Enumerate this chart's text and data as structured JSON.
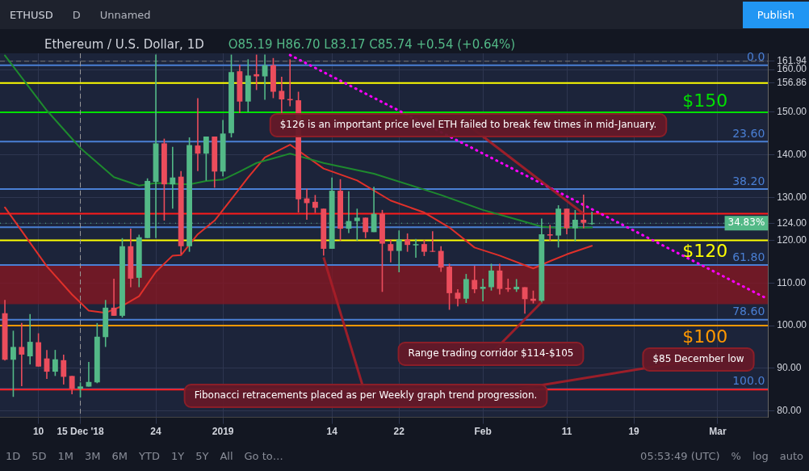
{
  "chart_data": {
    "type": "candlestick",
    "title": "Ethereum / U.S. Dollar, 1D",
    "subtitle": "O85.19 H86.70 L83.17 C85.74 +0.54 (+0.64%)",
    "x": [
      "2018-12-06",
      "2018-12-07",
      "2018-12-08",
      "2018-12-09",
      "2018-12-10",
      "2018-12-11",
      "2018-12-12",
      "2018-12-13",
      "2018-12-14",
      "2018-12-15",
      "2018-12-16",
      "2018-12-17",
      "2018-12-18",
      "2018-12-19",
      "2018-12-20",
      "2018-12-21",
      "2018-12-22",
      "2018-12-23",
      "2018-12-24",
      "2018-12-25",
      "2018-12-26",
      "2018-12-27",
      "2018-12-28",
      "2018-12-29",
      "2018-12-30",
      "2018-12-31",
      "2019-01-01",
      "2019-01-02",
      "2019-01-03",
      "2019-01-04",
      "2019-01-05",
      "2019-01-06",
      "2019-01-07",
      "2019-01-08",
      "2019-01-09",
      "2019-01-10",
      "2019-01-11",
      "2019-01-12",
      "2019-01-13",
      "2019-01-14",
      "2019-01-15",
      "2019-01-16",
      "2019-01-17",
      "2019-01-18",
      "2019-01-19",
      "2019-01-20",
      "2019-01-21",
      "2019-01-22",
      "2019-01-23",
      "2019-01-24",
      "2019-01-25",
      "2019-01-26",
      "2019-01-27",
      "2019-01-28",
      "2019-01-29",
      "2019-01-30",
      "2019-01-31",
      "2019-02-01",
      "2019-02-02",
      "2019-02-03",
      "2019-02-04",
      "2019-02-05",
      "2019-02-06",
      "2019-02-07",
      "2019-02-08",
      "2019-02-09",
      "2019-02-10",
      "2019-02-11",
      "2019-02-12",
      "2019-02-13",
      "2019-02-14"
    ],
    "ohlc": [
      [
        102.9,
        106.0,
        91.8,
        92.0
      ],
      [
        92.0,
        98.8,
        83.3,
        95.0
      ],
      [
        95.0,
        100.6,
        85.8,
        93.2
      ],
      [
        92.8,
        102.7,
        90.9,
        96.2
      ],
      [
        96.1,
        98.2,
        90.4,
        90.4
      ],
      [
        92.3,
        94.3,
        87.5,
        89.2
      ],
      [
        89.2,
        94.3,
        88.2,
        92.1
      ],
      [
        91.9,
        93.2,
        86.2,
        88.0
      ],
      [
        88.2,
        88.2,
        83.9,
        85.2
      ],
      [
        85.19,
        86.7,
        83.17,
        85.74
      ],
      [
        85.7,
        91.5,
        85.7,
        86.8
      ],
      [
        86.7,
        100.6,
        86.5,
        97.4
      ],
      [
        97.3,
        106.0,
        95.0,
        104.2
      ],
      [
        104.2,
        111.0,
        102.3,
        102.3
      ],
      [
        102.3,
        120.5,
        101.9,
        118.6
      ],
      [
        118.6,
        122.7,
        109.0,
        111.0
      ],
      [
        111.2,
        121.3,
        109.0,
        120.7
      ],
      [
        120.5,
        134.5,
        120.5,
        133.9
      ],
      [
        133.7,
        163.5,
        120.5,
        142.7
      ],
      [
        142.7,
        143.8,
        124.6,
        133.1
      ],
      [
        133.1,
        141.9,
        127.4,
        134.7
      ],
      [
        134.9,
        136.2,
        116.7,
        118.6
      ],
      [
        118.6,
        144.1,
        117.3,
        142.3
      ],
      [
        142.2,
        153.3,
        136.2,
        140.3
      ],
      [
        140.3,
        144.3,
        134.0,
        144.3
      ],
      [
        144.3,
        144.3,
        132.3,
        136.1
      ],
      [
        136.1,
        148.2,
        135.0,
        145.0
      ],
      [
        145.1,
        163.5,
        144.1,
        159.4
      ],
      [
        159.6,
        161.1,
        149.8,
        152.5
      ],
      [
        152.5,
        162.4,
        150.0,
        158.6
      ],
      [
        158.9,
        163.5,
        155.2,
        158.4
      ],
      [
        158.4,
        163.5,
        152.9,
        161.0
      ],
      [
        161.0,
        162.7,
        153.3,
        154.8
      ],
      [
        155.0,
        158.3,
        149.8,
        153.0
      ],
      [
        153.1,
        162.4,
        151.4,
        152.8
      ],
      [
        152.8,
        154.8,
        126.5,
        129.6
      ],
      [
        129.8,
        132.1,
        124.8,
        128.7
      ],
      [
        129.0,
        130.6,
        126.4,
        127.6
      ],
      [
        127.4,
        127.4,
        116.4,
        118.0
      ],
      [
        118.0,
        134.7,
        118.0,
        131.6
      ],
      [
        131.6,
        134.3,
        119.9,
        122.7
      ],
      [
        122.7,
        131.5,
        121.7,
        124.5
      ],
      [
        124.5,
        127.4,
        119.9,
        125.3
      ],
      [
        125.3,
        125.3,
        120.5,
        121.9
      ],
      [
        121.9,
        132.5,
        121.9,
        126.2
      ],
      [
        126.2,
        127.1,
        107.9,
        119.2
      ],
      [
        119.1,
        120.2,
        114.8,
        117.5
      ],
      [
        117.5,
        122.3,
        112.5,
        120.2
      ],
      [
        120.2,
        121.6,
        117.3,
        118.9
      ],
      [
        118.8,
        120.3,
        115.9,
        119.1
      ],
      [
        119.1,
        120.1,
        116.3,
        117.3
      ],
      [
        117.5,
        122.1,
        117.3,
        117.3
      ],
      [
        117.5,
        118.6,
        112.6,
        113.6
      ],
      [
        113.8,
        114.5,
        103.7,
        107.6
      ],
      [
        107.7,
        108.5,
        104.5,
        106.3
      ],
      [
        106.3,
        112.1,
        105.3,
        110.9
      ],
      [
        110.7,
        114.0,
        107.6,
        108.5
      ],
      [
        108.6,
        111.0,
        105.7,
        109.1
      ],
      [
        109.0,
        114.5,
        108.2,
        112.9
      ],
      [
        112.9,
        114.5,
        107.3,
        108.6
      ],
      [
        108.8,
        111.0,
        107.9,
        108.5
      ],
      [
        108.5,
        110.9,
        107.9,
        109.1
      ],
      [
        109.0,
        109.0,
        102.8,
        106.2
      ],
      [
        106.3,
        108.2,
        105.2,
        105.8
      ],
      [
        105.8,
        125.1,
        105.2,
        121.4
      ],
      [
        121.4,
        123.6,
        119.9,
        121.1
      ],
      [
        121.1,
        128.2,
        118.3,
        127.4
      ],
      [
        127.4,
        127.4,
        121.4,
        122.8
      ],
      [
        122.8,
        127.1,
        119.7,
        124.8
      ],
      [
        124.8,
        130.7,
        122.8,
        124.1
      ],
      [
        123.9,
        126.7,
        123.6,
        124.0
      ]
    ],
    "series": [
      {
        "type": "line",
        "color": "#1e8a2e",
        "x": [
          "2018-12-06",
          "2018-12-11",
          "2018-12-15",
          "2018-12-19",
          "2018-12-22",
          "2018-12-24",
          "2018-12-28",
          "2018-12-30",
          "2019-01-01",
          "2019-01-03",
          "2019-01-05",
          "2019-01-07",
          "2019-01-09",
          "2019-01-13",
          "2019-01-19",
          "2019-01-24",
          "2019-01-27",
          "2019-02-01",
          "2019-02-05",
          "2019-02-08",
          "2019-02-10",
          "2019-02-14"
        ],
        "values": [
          163.3,
          150.4,
          141.6,
          134.8,
          132.8,
          133.4,
          133.1,
          133.9,
          134.2,
          136.1,
          138.1,
          139.2,
          140.3,
          138.1,
          135.6,
          132.5,
          130.6,
          127.1,
          124.9,
          123.2,
          122.9,
          123.0
        ]
      },
      {
        "type": "line",
        "color": "#e0302a",
        "x": [
          "2018-12-06",
          "2018-12-11",
          "2018-12-14",
          "2018-12-16",
          "2018-12-18",
          "2018-12-20",
          "2018-12-22",
          "2018-12-24",
          "2018-12-26",
          "2018-12-27",
          "2018-12-29",
          "2018-12-31",
          "2019-01-02",
          "2019-01-04",
          "2019-01-06",
          "2019-01-09",
          "2019-01-13",
          "2019-01-17",
          "2019-01-21",
          "2019-01-25",
          "2019-01-28",
          "2019-01-31",
          "2019-02-03",
          "2019-02-07",
          "2019-02-09",
          "2019-02-11",
          "2019-02-14"
        ],
        "values": [
          127.7,
          113.9,
          107.3,
          103.5,
          103.0,
          104.6,
          106.9,
          112.6,
          116.4,
          116.5,
          121.4,
          124.6,
          129.6,
          134.7,
          139.4,
          142.4,
          136.8,
          134.0,
          129.3,
          126.5,
          123.0,
          118.3,
          116.4,
          113.4,
          115.1,
          116.7,
          118.7
        ]
      },
      {
        "type": "line",
        "color": "#ff00ff",
        "line_style": "dotted",
        "x": [
          "2019-01-09",
          "2019-03-07"
        ],
        "values": [
          163.4,
          106.2
        ]
      }
    ],
    "xlim": [
      "2018-12-05T10:00",
      "2019-03-07"
    ],
    "xticks": [
      {
        "value": "2018-12-10",
        "label": "10"
      },
      {
        "value": "2018-12-15",
        "label": "15 Dec '18"
      },
      {
        "value": "2018-12-24",
        "label": "24"
      },
      {
        "value": "2019-01-01",
        "label": "2019"
      },
      {
        "value": "2019-01-14",
        "label": "14"
      },
      {
        "value": "2019-01-22",
        "label": "22"
      },
      {
        "value": "2019-02-01",
        "label": "Feb"
      },
      {
        "value": "2019-02-11",
        "label": "11"
      },
      {
        "value": "2019-02-19",
        "label": "19"
      },
      {
        "value": "2019-03-01",
        "label": "Mar"
      }
    ],
    "ylim": [
      78.5,
      163.8
    ],
    "yticks": [
      {
        "value": 80,
        "label": "80.00"
      },
      {
        "value": 90,
        "label": "90.00"
      },
      {
        "value": 100,
        "label": "100.00"
      },
      {
        "value": 110,
        "label": "110.00"
      },
      {
        "value": 120,
        "label": "120.00"
      },
      {
        "value": 124,
        "label": "124.00"
      },
      {
        "value": 130,
        "label": "130.00"
      },
      {
        "value": 140,
        "label": "140.00"
      },
      {
        "value": 150,
        "label": "150.00"
      },
      {
        "value": 156.86,
        "label": "156.86"
      },
      {
        "value": 160,
        "label": "160.00"
      },
      {
        "value": 161.94,
        "label": "161.94"
      }
    ],
    "grid": true,
    "legend": false,
    "bands": [
      {
        "axis": "y",
        "from": 105,
        "to": 114,
        "color": "#8b1520"
      }
    ],
    "ref_lines": [
      {
        "axis": "y",
        "value": 161.0,
        "label": null,
        "color": "#4a7fd4"
      },
      {
        "axis": "y",
        "value": 143.1,
        "label": null,
        "color": "#4a7fd4"
      },
      {
        "axis": "y",
        "value": 132.0,
        "label": null,
        "color": "#4a7fd4"
      },
      {
        "axis": "y",
        "value": 123.05,
        "label": null,
        "color": "#4a7fd4"
      },
      {
        "axis": "y",
        "value": 114.2,
        "label": null,
        "color": "#4a7fd4"
      },
      {
        "axis": "y",
        "value": 101.4,
        "label": null,
        "color": "#4a7fd4"
      },
      {
        "axis": "y",
        "value": 85.1,
        "label": null,
        "color": "#4a7fd4"
      },
      {
        "axis": "y",
        "value": 156.86,
        "label": null,
        "color": "#ffff00"
      },
      {
        "axis": "y",
        "value": 150,
        "label": "$150",
        "color": "#00e000"
      },
      {
        "axis": "y",
        "value": 126.2,
        "label": null,
        "color": "#ff1a1a"
      },
      {
        "axis": "y",
        "value": 120,
        "label": "$120",
        "color": "#ffff00"
      },
      {
        "axis": "y",
        "value": 100,
        "label": "$100",
        "color": "#ff9800"
      },
      {
        "axis": "y",
        "value": 85,
        "label": null,
        "color": "#ff1a1a"
      },
      {
        "axis": "y",
        "value": 161.94,
        "label": null,
        "color": "#777777",
        "line_style": "dashed"
      },
      {
        "axis": "y",
        "value": 124,
        "label": null,
        "color": "#53b987",
        "line_style": "dotted"
      },
      {
        "axis": "x",
        "value": "2018-12-15",
        "label": null,
        "color": "#999999",
        "line_style": "dashed"
      }
    ],
    "annotations": [
      {
        "text": "$126 is an important price level ETH failed to break few times in mid-January.",
        "x": "2019-02-13",
        "y": 126.2
      },
      {
        "text": "Range trading corridor $114-$105",
        "x": "2019-02-08",
        "y": 105.5
      },
      {
        "text": "$85 December low",
        "x": "2019-02-05",
        "y": 85.1
      },
      {
        "text": "Fibonacci retracements placed as per Weekly graph trend progression.",
        "x": "2019-01-13",
        "y": 116
      },
      "34.83%",
      "ETHUSD",
      "D",
      "Unnamed",
      "Publish",
      "1D",
      "5D",
      "1M",
      "3M",
      "6M",
      "YTD",
      "1Y",
      "5Y",
      "All",
      "Go to…",
      "05:53:49 (UTC)",
      "%",
      "log",
      "auto",
      {
        "text": "0.0",
        "y": 161.0
      },
      {
        "text": "23.60",
        "y": 143.1
      },
      {
        "text": "38.20",
        "y": 132.0
      },
      {
        "text": "61.80",
        "y": 114.2
      },
      {
        "text": "78.60",
        "y": 101.4
      },
      {
        "text": "100.0",
        "y": 85.1
      }
    ]
  }
}
